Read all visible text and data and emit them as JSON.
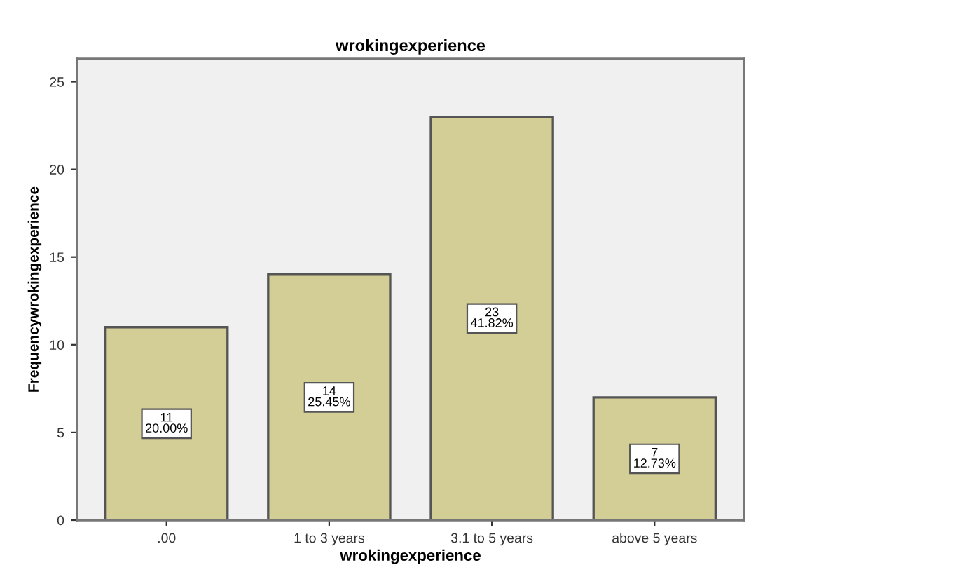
{
  "chart_data": {
    "type": "bar",
    "title": "wrokingexperience",
    "xlabel": "wrokingexperience",
    "ylabel": "Frequencywrokingexperience",
    "categories": [
      ".00",
      "1 to 3 years",
      "3.1 to 5 years",
      "above 5 years"
    ],
    "values": [
      11,
      14,
      23,
      7
    ],
    "value_labels": [
      "11\n20.00%",
      "14\n25.45%",
      "23\n41.82%",
      "7\n12.73%"
    ],
    "color": "#d3cd96",
    "ylim": [
      0,
      26.3
    ],
    "yticks": [
      0,
      5,
      10,
      15,
      20,
      25
    ],
    "grid": false,
    "legend": false
  }
}
